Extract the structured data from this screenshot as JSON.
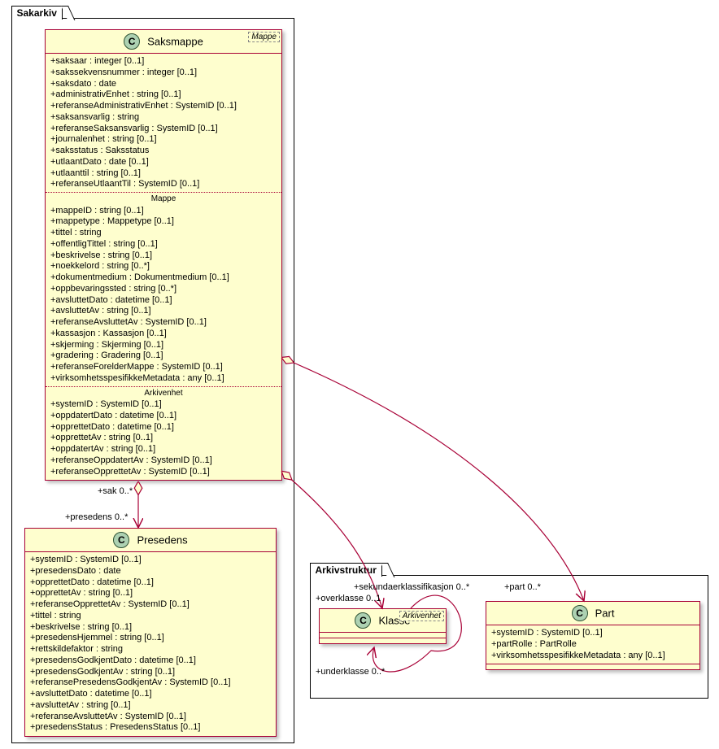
{
  "packages": {
    "sakarkiv": {
      "label": "Sakarkiv"
    },
    "arkivstruktur": {
      "label": "Arkivstruktur"
    }
  },
  "classes": {
    "saksmappe": {
      "title": "Saksmappe",
      "stereotype": "Mappe",
      "own_attrs": [
        "+saksaar : integer [0..1]",
        "+sakssekvensnummer : integer [0..1]",
        "+saksdato : date",
        "+administrativEnhet : string [0..1]",
        "+referanseAdministrativEnhet : SystemID [0..1]",
        "+saksansvarlig : string",
        "+referanseSaksansvarlig : SystemID [0..1]",
        "+journalenhet : string [0..1]",
        "+saksstatus : Saksstatus",
        "+utlaantDato : date [0..1]",
        "+utlaanttil : string [0..1]",
        "+referanseUtlaantTil : SystemID [0..1]"
      ],
      "mappe_label": "Mappe",
      "mappe_attrs": [
        "+mappeID : string [0..1]",
        "+mappetype : Mappetype [0..1]",
        "+tittel : string",
        "+offentligTittel : string [0..1]",
        "+beskrivelse : string [0..1]",
        "+noekkelord : string [0..*]",
        "+dokumentmedium : Dokumentmedium [0..1]",
        "+oppbevaringssted : string [0..*]",
        "+avsluttetDato : datetime [0..1]",
        "+avsluttetAv : string [0..1]",
        "+referanseAvsluttetAv : SystemID [0..1]",
        "+kassasjon : Kassasjon [0..1]",
        "+skjerming : Skjerming [0..1]",
        "+gradering : Gradering [0..1]",
        "+referanseForelderMappe : SystemID [0..1]",
        "+virksomhetsspesifikkeMetadata : any [0..1]"
      ],
      "arkivenhet_label": "Arkivenhet",
      "arkivenhet_attrs": [
        "+systemID : SystemID [0..1]",
        "+oppdatertDato : datetime [0..1]",
        "+opprettetDato : datetime [0..1]",
        "+opprettetAv : string [0..1]",
        "+oppdatertAv : string [0..1]",
        "+referanseOppdatertAv : SystemID [0..1]",
        "+referanseOpprettetAv : SystemID [0..1]"
      ]
    },
    "presedens": {
      "title": "Presedens",
      "attrs": [
        "+systemID : SystemID [0..1]",
        "+presedensDato : date",
        "+opprettetDato : datetime [0..1]",
        "+opprettetAv : string [0..1]",
        "+referanseOpprettetAv : SystemID [0..1]",
        "+tittel : string",
        "+beskrivelse : string [0..1]",
        "+presedensHjemmel : string [0..1]",
        "+rettskildefaktor : string",
        "+presedensGodkjentDato : datetime [0..1]",
        "+presedensGodkjentAv : string [0..1]",
        "+referansePresedensGodkjentAv : SystemID [0..1]",
        "+avsluttetDato : datetime [0..1]",
        "+avsluttetAv : string [0..1]",
        "+referanseAvsluttetAv : SystemID [0..1]",
        "+presedensStatus : PresedensStatus [0..1]"
      ]
    },
    "klasse": {
      "title": "Klasse",
      "stereotype": "Arkivenhet"
    },
    "part": {
      "title": "Part",
      "attrs": [
        "+systemID : SystemID [0..1]",
        "+partRolle : PartRolle",
        "+virksomhetsspesifikkeMetadata : any [0..1]"
      ]
    }
  },
  "edges": {
    "sak_presedens_top": "+sak 0..*",
    "sak_presedens_bottom": "+presedens 0..*",
    "klasse_self_over": "+overklasse 0..1",
    "klasse_self_under": "+underklasse 0..*",
    "sek_klass": "+sekundaerklassifikasjon 0..*",
    "part": "+part 0..*"
  },
  "style": {
    "class_fill": "#fefece",
    "class_border": "#a80036",
    "icon_fill": "#add1b2",
    "line": "#a80036"
  }
}
